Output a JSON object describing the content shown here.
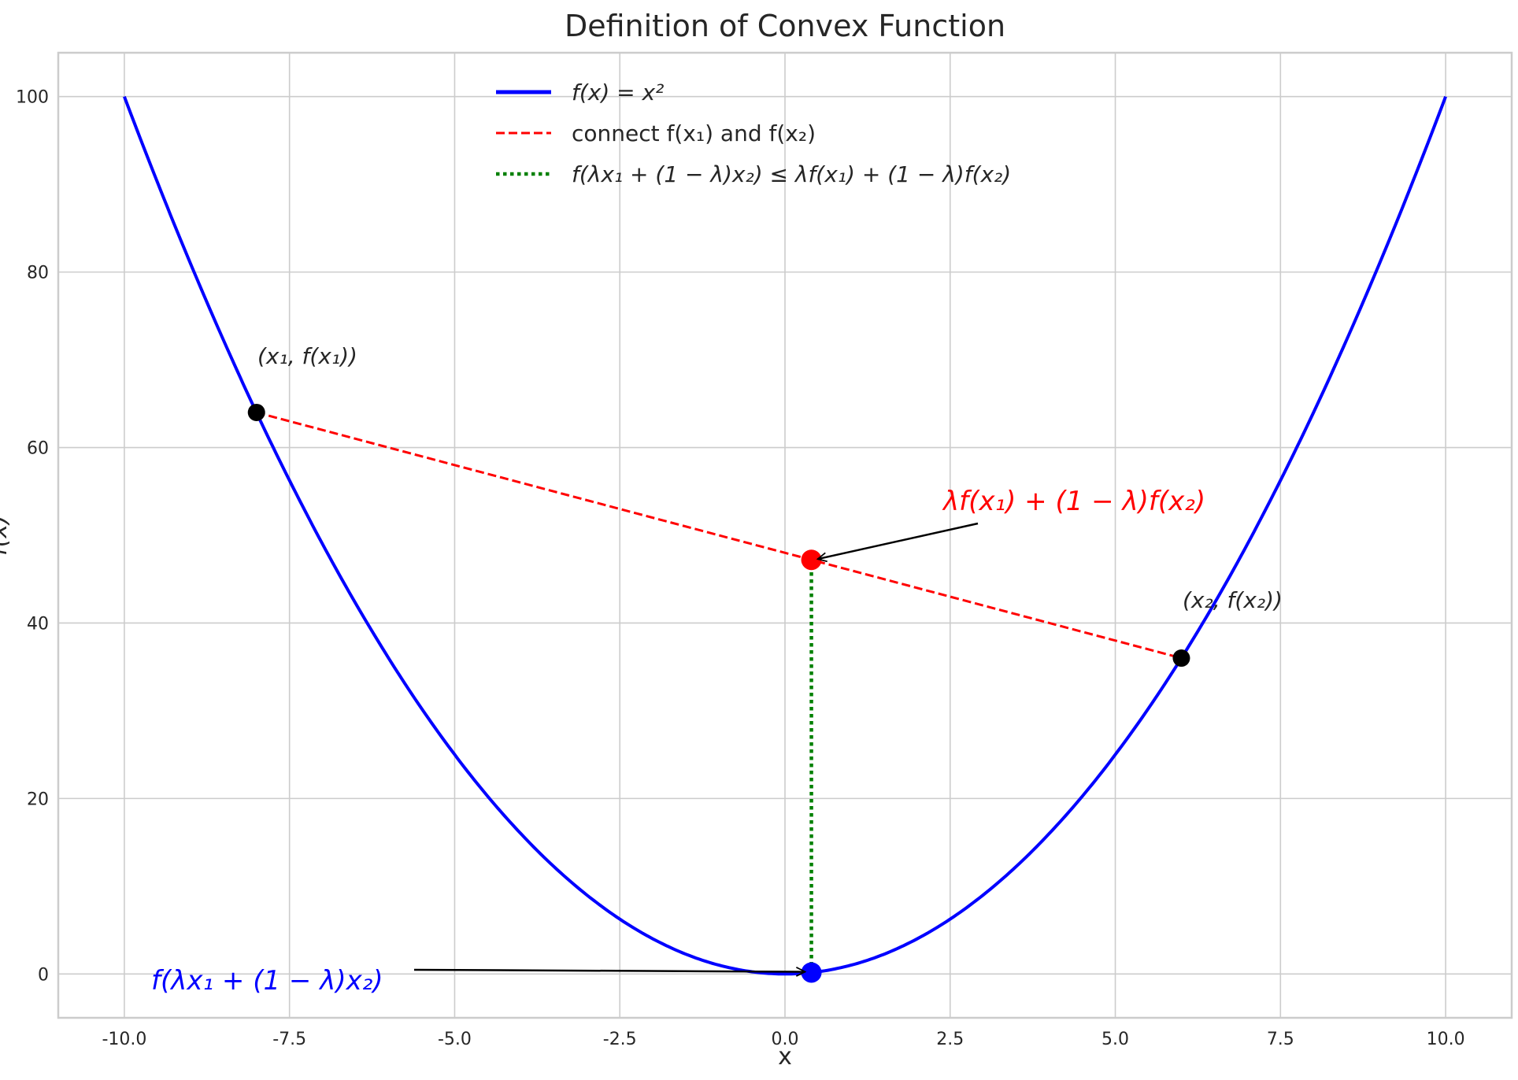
{
  "chart_data": {
    "type": "line",
    "title": "Definition of Convex Function",
    "xlabel": "x",
    "ylabel": "f(x)",
    "xlim": [
      -11,
      11
    ],
    "ylim": [
      -5,
      105
    ],
    "grid": true,
    "xticks": [
      "-10.0",
      "-7.5",
      "-5.0",
      "-2.5",
      "0.0",
      "2.5",
      "5.0",
      "7.5",
      "10.0"
    ],
    "xtick_values": [
      -10,
      -7.5,
      -5,
      -2.5,
      0,
      2.5,
      5,
      7.5,
      10
    ],
    "yticks": [
      "0",
      "20",
      "40",
      "60",
      "80",
      "100"
    ],
    "ytick_values": [
      0,
      20,
      40,
      60,
      80,
      100
    ],
    "legend_placement": "upper-center",
    "series": [
      {
        "name": "f(x) = x²",
        "style": "solid",
        "color": "#0000ff",
        "function": "x^2",
        "x_range": [
          -10,
          10
        ]
      },
      {
        "name": "connect f(x₁) and f(x₂)",
        "style": "dashed",
        "color": "#ff0000",
        "x": [
          -8,
          6
        ],
        "y": [
          64,
          36
        ]
      },
      {
        "name": "f(λx₁ + (1 − λ)x₂) ≤ λf(x₁) + (1 − λ)f(x₂)",
        "style": "dotted",
        "color": "#008000",
        "x": [
          0.4,
          0.4
        ],
        "y": [
          0.16,
          47.2
        ]
      }
    ],
    "points": [
      {
        "x": -8,
        "y": 64,
        "color": "#000000"
      },
      {
        "x": 6,
        "y": 36,
        "color": "#000000"
      },
      {
        "x": 0.4,
        "y": 47.2,
        "color": "#ff0000"
      },
      {
        "x": 0.4,
        "y": 0.16,
        "color": "#0000ff"
      }
    ],
    "annotations": [
      {
        "text": "(x₁, f(x₁))",
        "color": "#262626"
      },
      {
        "text": "(x₂, f(x₂))",
        "color": "#262626"
      },
      {
        "text": "λf(x₁) + (1 − λ)f(x₂)",
        "color": "#ff0000",
        "arrow_to": [
          0.4,
          47.2
        ]
      },
      {
        "text": "f(λx₁ + (1 − λ)x₂)",
        "color": "#0000ff",
        "arrow_to": [
          0.4,
          0.16
        ]
      }
    ]
  }
}
